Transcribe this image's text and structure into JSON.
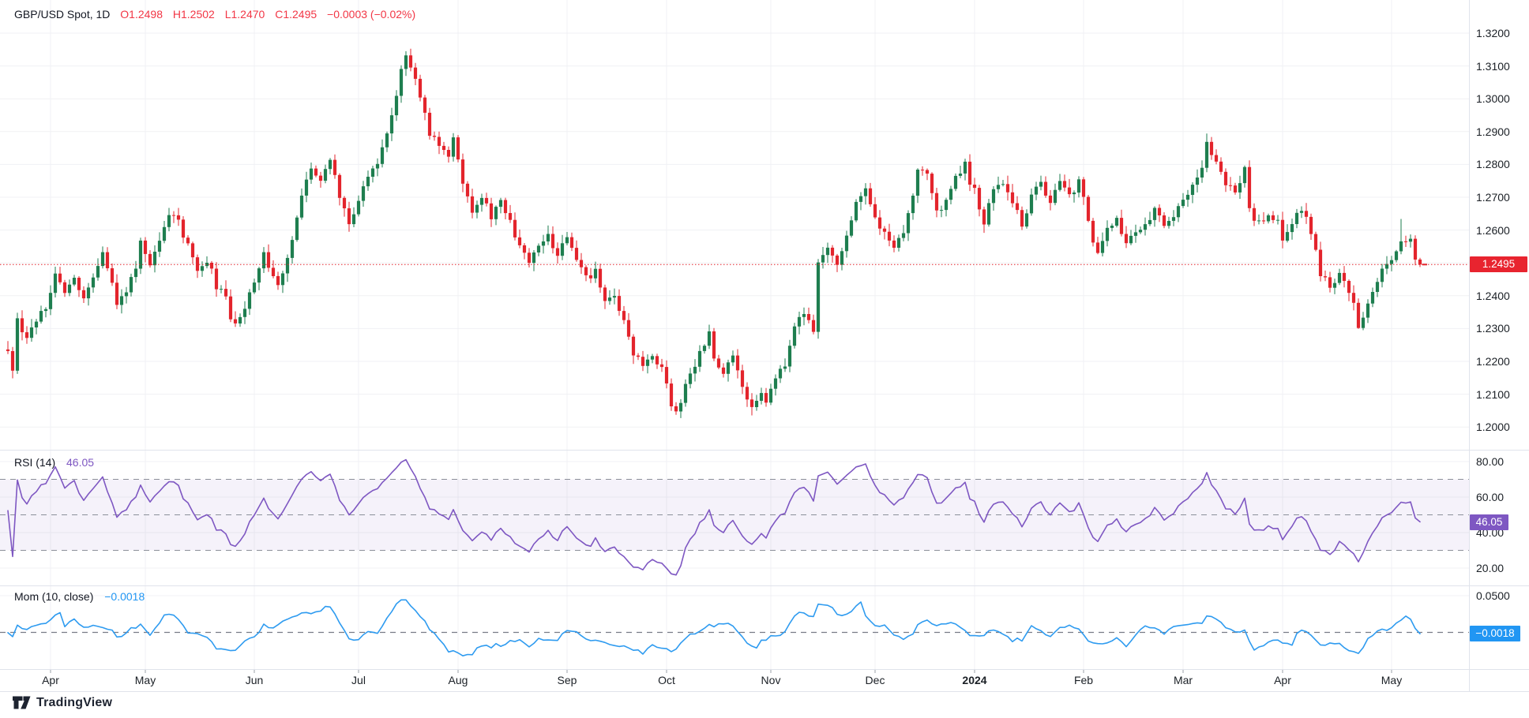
{
  "header": {
    "title": "GBP/USD Spot, 1D",
    "open": "O1.2498",
    "high": "H1.2502",
    "low": "L1.2470",
    "close": "C1.2495",
    "change": "−0.0003 (−0.02%)"
  },
  "panes": {
    "rsi": {
      "name": "RSI (14)",
      "value": "46.05"
    },
    "mom": {
      "name": "Mom (10, close)",
      "value": "−0.0018"
    }
  },
  "badges": {
    "price": "1.2495",
    "rsi": "46.05",
    "mom": "−0.0018"
  },
  "logo": {
    "text": "TradingView"
  },
  "chart_data": {
    "type": "candlestick",
    "symbol": "GBP/USD",
    "timeframe": "1D",
    "n_days": 299,
    "last_close": 1.2495,
    "price_line_level": 1.2495,
    "colors": {
      "up": "#1E7E4F",
      "down": "#E3242C",
      "price_line": "#E3242C",
      "grid": "#F0F1F4",
      "separator": "#E0E3EB",
      "rsi_line": "#7E57C2",
      "rsi_band_fill": "#7E57C2",
      "level_dash": "#8B8F99",
      "mom_line": "#2E9BF0",
      "badge_price": "#E8242F",
      "badge_rsi": "#7E57C2",
      "badge_mom": "#2196F3",
      "tick": "#9BA0AA"
    },
    "price_axis": {
      "tick_step": 0.01,
      "labels": [
        {
          "text": "1.3200",
          "value": 1.32
        },
        {
          "text": "1.3100",
          "value": 1.31
        },
        {
          "text": "1.3000",
          "value": 1.3
        },
        {
          "text": "1.2900",
          "value": 1.29
        },
        {
          "text": "1.2800",
          "value": 1.28
        },
        {
          "text": "1.2700",
          "value": 1.27
        },
        {
          "text": "1.2600",
          "value": 1.26
        },
        {
          "text": "1.2400",
          "value": 1.24
        },
        {
          "text": "1.2300",
          "value": 1.23
        },
        {
          "text": "1.2200",
          "value": 1.22
        },
        {
          "text": "1.2100",
          "value": 1.21
        },
        {
          "text": "1.2000",
          "value": 1.2
        }
      ]
    },
    "rsi_axis": {
      "labels": [
        {
          "text": "80.00",
          "value": 80
        },
        {
          "text": "60.00",
          "value": 60
        },
        {
          "text": "40.00",
          "value": 40
        },
        {
          "text": "20.00",
          "value": 20
        }
      ],
      "band": [
        30,
        70
      ],
      "mid": 50,
      "last_value": 46.05
    },
    "mom_axis": {
      "labels": [
        {
          "text": "0.0500",
          "value": 0.05
        }
      ],
      "zero_level": 0,
      "last_value": -0.0018
    },
    "months": [
      {
        "label": "Apr",
        "day": 9
      },
      {
        "label": "May",
        "day": 29
      },
      {
        "label": "Jun",
        "day": 52
      },
      {
        "label": "Jul",
        "day": 74
      },
      {
        "label": "Aug",
        "day": 95
      },
      {
        "label": "Sep",
        "day": 118
      },
      {
        "label": "Oct",
        "day": 139
      },
      {
        "label": "Nov",
        "day": 161
      },
      {
        "label": "Dec",
        "day": 183
      },
      {
        "label": "2024",
        "day": 204,
        "bold": true
      },
      {
        "label": "Feb",
        "day": 227
      },
      {
        "label": "Mar",
        "day": 248
      },
      {
        "label": "Apr",
        "day": 269
      },
      {
        "label": "May",
        "day": 292
      }
    ],
    "close_anchors": [
      [
        0,
        1.223
      ],
      [
        1,
        1.218
      ],
      [
        2,
        1.233
      ],
      [
        4,
        1.226
      ],
      [
        6,
        1.233
      ],
      [
        8,
        1.236
      ],
      [
        9,
        1.242
      ],
      [
        10,
        1.248
      ],
      [
        12,
        1.24
      ],
      [
        14,
        1.245
      ],
      [
        16,
        1.239
      ],
      [
        18,
        1.245
      ],
      [
        20,
        1.252
      ],
      [
        22,
        1.245
      ],
      [
        23,
        1.238
      ],
      [
        25,
        1.242
      ],
      [
        27,
        1.248
      ],
      [
        28,
        1.256
      ],
      [
        30,
        1.25
      ],
      [
        32,
        1.258
      ],
      [
        34,
        1.265
      ],
      [
        36,
        1.262
      ],
      [
        38,
        1.255
      ],
      [
        40,
        1.248
      ],
      [
        42,
        1.251
      ],
      [
        44,
        1.243
      ],
      [
        46,
        1.239
      ],
      [
        47,
        1.233
      ],
      [
        48,
        1.231
      ],
      [
        50,
        1.237
      ],
      [
        52,
        1.245
      ],
      [
        54,
        1.253
      ],
      [
        55,
        1.248
      ],
      [
        57,
        1.244
      ],
      [
        59,
        1.251
      ],
      [
        60,
        1.256
      ],
      [
        62,
        1.27
      ],
      [
        64,
        1.279
      ],
      [
        66,
        1.276
      ],
      [
        68,
        1.281
      ],
      [
        70,
        1.27
      ],
      [
        72,
        1.262
      ],
      [
        74,
        1.27
      ],
      [
        76,
        1.275
      ],
      [
        78,
        1.281
      ],
      [
        80,
        1.29
      ],
      [
        82,
        1.3
      ],
      [
        83,
        1.308
      ],
      [
        84,
        1.314
      ],
      [
        86,
        1.306
      ],
      [
        88,
        1.296
      ],
      [
        89,
        1.29
      ],
      [
        91,
        1.286
      ],
      [
        93,
        1.283
      ],
      [
        94,
        1.288
      ],
      [
        96,
        1.274
      ],
      [
        98,
        1.266
      ],
      [
        100,
        1.27
      ],
      [
        102,
        1.264
      ],
      [
        104,
        1.268
      ],
      [
        106,
        1.262
      ],
      [
        108,
        1.256
      ],
      [
        110,
        1.25
      ],
      [
        112,
        1.254
      ],
      [
        114,
        1.258
      ],
      [
        116,
        1.252
      ],
      [
        118,
        1.259
      ],
      [
        120,
        1.251
      ],
      [
        122,
        1.245
      ],
      [
        124,
        1.248
      ],
      [
        126,
        1.238
      ],
      [
        128,
        1.24
      ],
      [
        130,
        1.232
      ],
      [
        132,
        1.223
      ],
      [
        134,
        1.218
      ],
      [
        136,
        1.221
      ],
      [
        138,
        1.217
      ],
      [
        139,
        1.212
      ],
      [
        140,
        1.206
      ],
      [
        141,
        1.204
      ],
      [
        143,
        1.213
      ],
      [
        145,
        1.219
      ],
      [
        147,
        1.226
      ],
      [
        148,
        1.228
      ],
      [
        149,
        1.221
      ],
      [
        151,
        1.216
      ],
      [
        153,
        1.223
      ],
      [
        155,
        1.212
      ],
      [
        157,
        1.207
      ],
      [
        159,
        1.211
      ],
      [
        160,
        1.208
      ],
      [
        162,
        1.215
      ],
      [
        164,
        1.218
      ],
      [
        166,
        1.231
      ],
      [
        168,
        1.235
      ],
      [
        170,
        1.228
      ],
      [
        171,
        1.25
      ],
      [
        173,
        1.254
      ],
      [
        175,
        1.25
      ],
      [
        177,
        1.259
      ],
      [
        179,
        1.269
      ],
      [
        181,
        1.272
      ],
      [
        183,
        1.263
      ],
      [
        185,
        1.259
      ],
      [
        187,
        1.255
      ],
      [
        189,
        1.259
      ],
      [
        191,
        1.27
      ],
      [
        192,
        1.279
      ],
      [
        194,
        1.276
      ],
      [
        196,
        1.265
      ],
      [
        198,
        1.269
      ],
      [
        200,
        1.276
      ],
      [
        202,
        1.281
      ],
      [
        203,
        1.275
      ],
      [
        204,
        1.272
      ],
      [
        206,
        1.262
      ],
      [
        208,
        1.272
      ],
      [
        210,
        1.275
      ],
      [
        212,
        1.268
      ],
      [
        214,
        1.262
      ],
      [
        216,
        1.27
      ],
      [
        218,
        1.274
      ],
      [
        220,
        1.269
      ],
      [
        222,
        1.274
      ],
      [
        224,
        1.27
      ],
      [
        226,
        1.275
      ],
      [
        227,
        1.269
      ],
      [
        229,
        1.256
      ],
      [
        230,
        1.252
      ],
      [
        232,
        1.26
      ],
      [
        234,
        1.263
      ],
      [
        236,
        1.256
      ],
      [
        238,
        1.26
      ],
      [
        240,
        1.262
      ],
      [
        242,
        1.266
      ],
      [
        244,
        1.262
      ],
      [
        246,
        1.265
      ],
      [
        248,
        1.268
      ],
      [
        250,
        1.274
      ],
      [
        252,
        1.28
      ],
      [
        253,
        1.286
      ],
      [
        255,
        1.281
      ],
      [
        257,
        1.274
      ],
      [
        259,
        1.272
      ],
      [
        261,
        1.278
      ],
      [
        262,
        1.266
      ],
      [
        264,
        1.262
      ],
      [
        266,
        1.265
      ],
      [
        268,
        1.262
      ],
      [
        269,
        1.256
      ],
      [
        271,
        1.263
      ],
      [
        273,
        1.266
      ],
      [
        275,
        1.26
      ],
      [
        277,
        1.247
      ],
      [
        279,
        1.243
      ],
      [
        281,
        1.246
      ],
      [
        283,
        1.242
      ],
      [
        284,
        1.237
      ],
      [
        285,
        1.231
      ],
      [
        286,
        1.234
      ],
      [
        287,
        1.237
      ],
      [
        288,
        1.242
      ],
      [
        290,
        1.247
      ],
      [
        292,
        1.251
      ],
      [
        294,
        1.256
      ],
      [
        296,
        1.2585
      ],
      [
        297,
        1.251
      ],
      [
        298,
        1.2495
      ]
    ],
    "wick_overrides": [
      {
        "day": 84,
        "high": 1.3145
      },
      {
        "day": 141,
        "low": 1.2037
      },
      {
        "day": 253,
        "high": 1.2894
      },
      {
        "day": 285,
        "low": 1.2299
      },
      {
        "day": 294,
        "high": 1.2634
      }
    ]
  }
}
